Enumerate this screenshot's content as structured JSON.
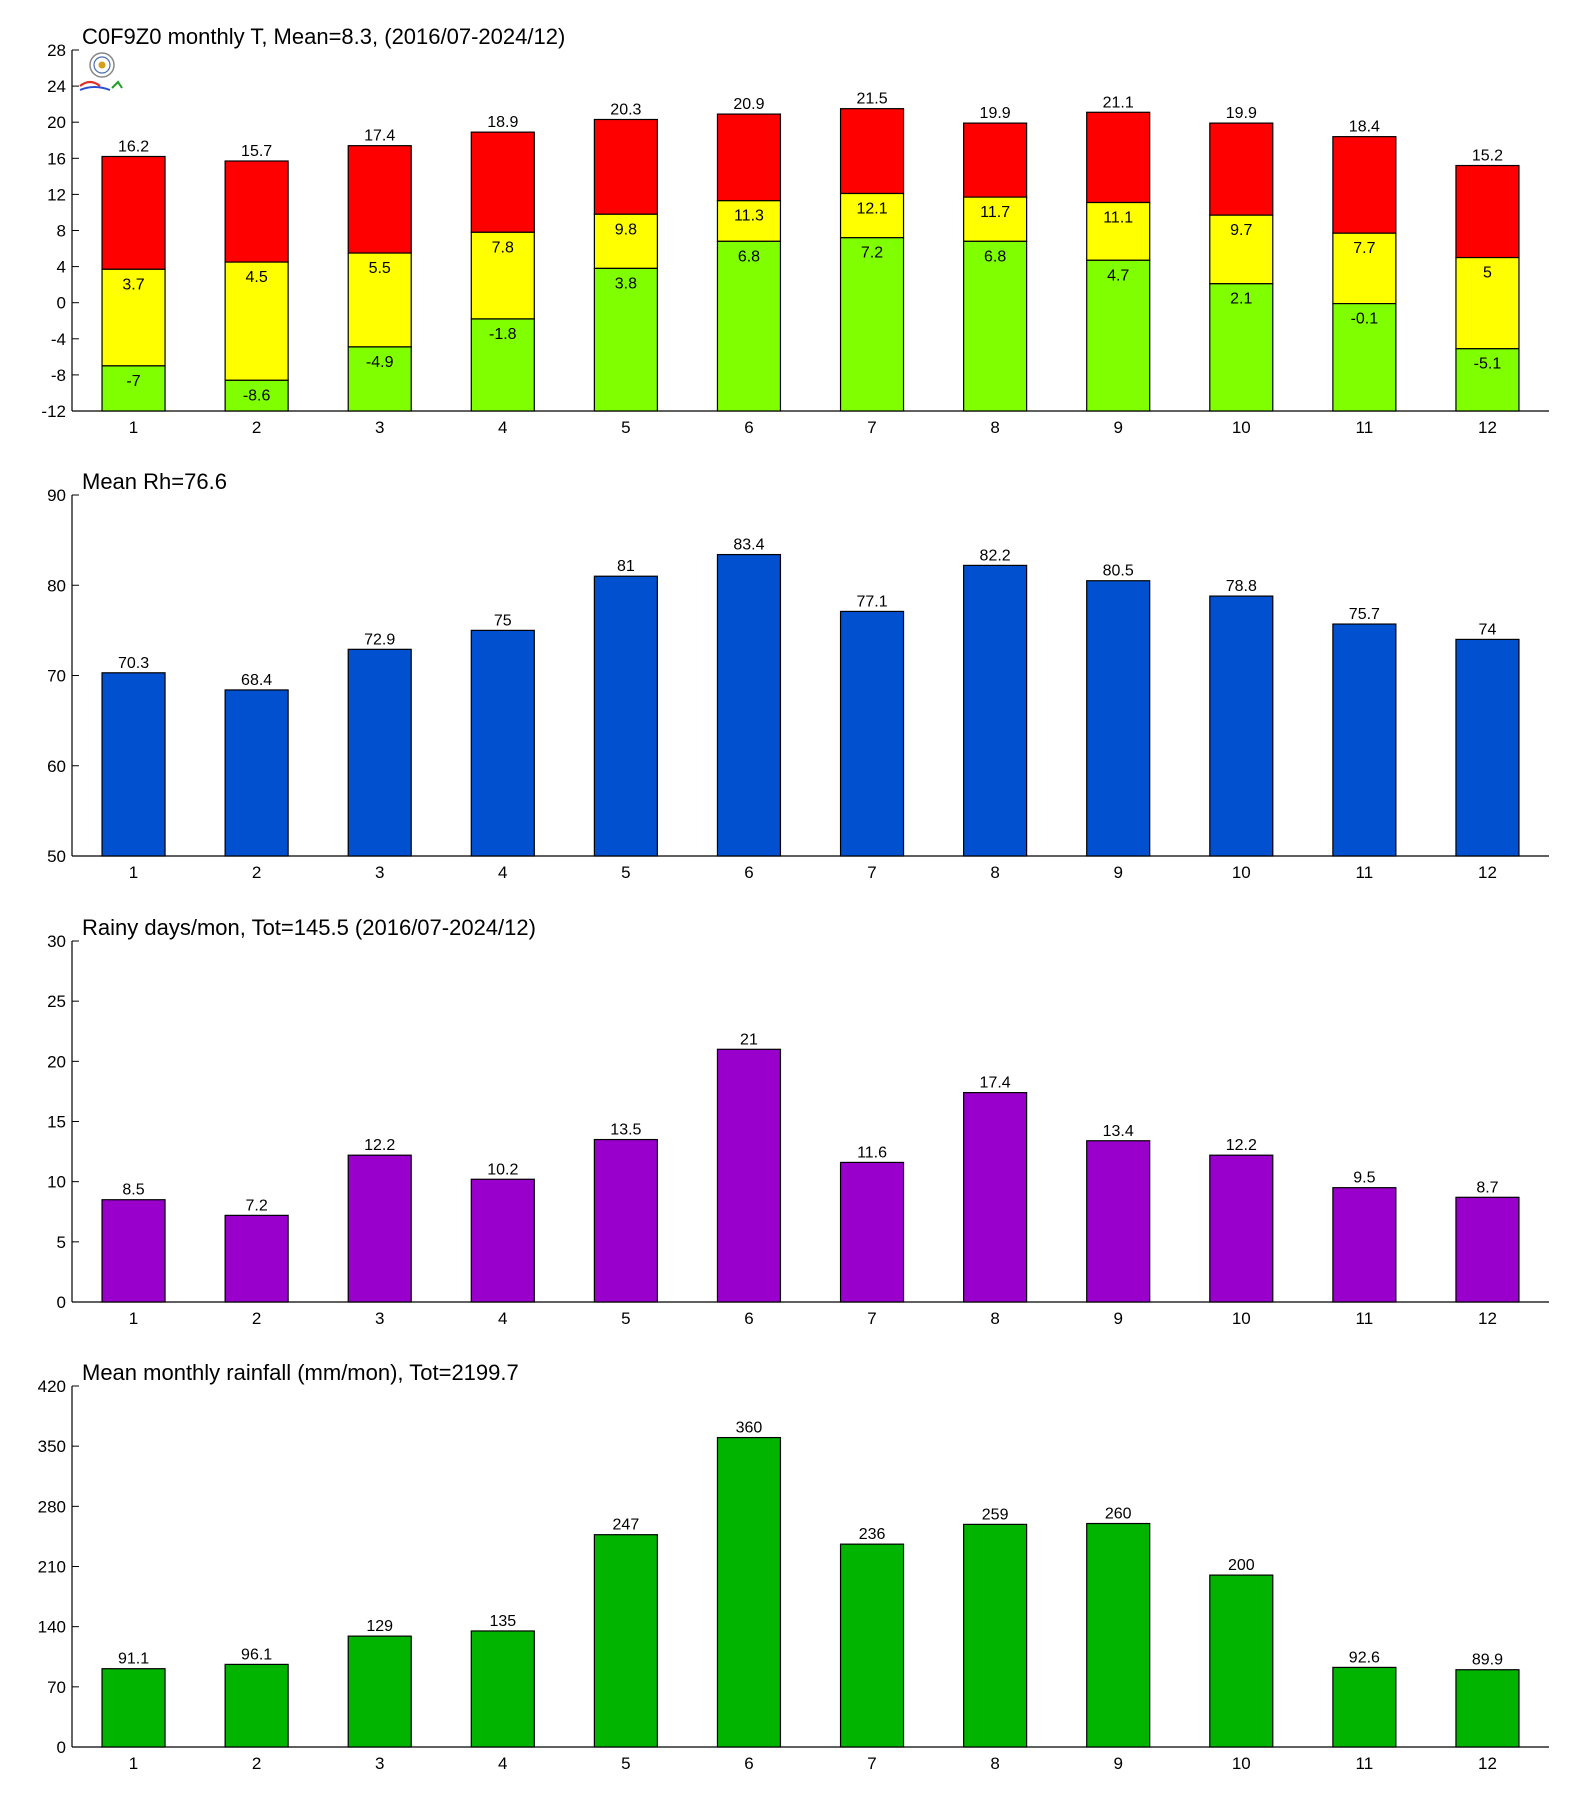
{
  "chart_data": [
    {
      "type": "bar",
      "stacked": true,
      "title": "C0F9Z0 monthly T, Mean=8.3, (2016/07-2024/12)",
      "categories": [
        "1",
        "2",
        "3",
        "4",
        "5",
        "6",
        "7",
        "8",
        "9",
        "10",
        "11",
        "12"
      ],
      "ylim": [
        -12,
        28
      ],
      "yticks": [
        -12,
        -8,
        -4,
        0,
        4,
        8,
        12,
        16,
        20,
        24,
        28
      ],
      "colors": {
        "max": "#ff0000",
        "mean": "#ffff00",
        "min": "#80ff00"
      },
      "max_values": [
        16.2,
        15.7,
        17.4,
        18.9,
        20.3,
        20.9,
        21.5,
        19.9,
        21.1,
        19.9,
        18.4,
        15.2
      ],
      "mean_values": [
        3.7,
        4.5,
        5.5,
        7.8,
        9.8,
        11.3,
        12.1,
        11.7,
        11.1,
        9.7,
        7.7,
        5
      ],
      "min_values": [
        -7,
        -8.6,
        -4.9,
        -1.8,
        3.8,
        6.8,
        7.2,
        6.8,
        4.7,
        2.1,
        -0.1,
        -5.1
      ],
      "grid": false
    },
    {
      "type": "bar",
      "title": "Mean Rh=76.6",
      "categories": [
        "1",
        "2",
        "3",
        "4",
        "5",
        "6",
        "7",
        "8",
        "9",
        "10",
        "11",
        "12"
      ],
      "values": [
        70.3,
        68.4,
        72.9,
        75,
        81,
        83.4,
        77.1,
        82.2,
        80.5,
        78.8,
        75.7,
        74
      ],
      "ylim": [
        50,
        90
      ],
      "yticks": [
        50,
        60,
        70,
        80,
        90
      ],
      "color": "#0050d0",
      "grid": false
    },
    {
      "type": "bar",
      "title": "Rainy days/mon, Tot=145.5 (2016/07-2024/12)",
      "categories": [
        "1",
        "2",
        "3",
        "4",
        "5",
        "6",
        "7",
        "8",
        "9",
        "10",
        "11",
        "12"
      ],
      "values": [
        8.5,
        7.2,
        12.2,
        10.2,
        13.5,
        21,
        11.6,
        17.4,
        13.4,
        12.2,
        9.5,
        8.7
      ],
      "ylim": [
        0,
        30
      ],
      "yticks": [
        0,
        5,
        10,
        15,
        20,
        25,
        30
      ],
      "color": "#9900cc",
      "grid": false
    },
    {
      "type": "bar",
      "title": "Mean monthly rainfall (mm/mon), Tot=2199.7",
      "categories": [
        "1",
        "2",
        "3",
        "4",
        "5",
        "6",
        "7",
        "8",
        "9",
        "10",
        "11",
        "12"
      ],
      "values": [
        91.1,
        96.1,
        129,
        135,
        247,
        360,
        236,
        259,
        260,
        200,
        92.6,
        89.9
      ],
      "ylim": [
        0,
        420
      ],
      "yticks": [
        0,
        70,
        140,
        210,
        280,
        350,
        420
      ],
      "color": "#00b400",
      "grid": false
    }
  ]
}
